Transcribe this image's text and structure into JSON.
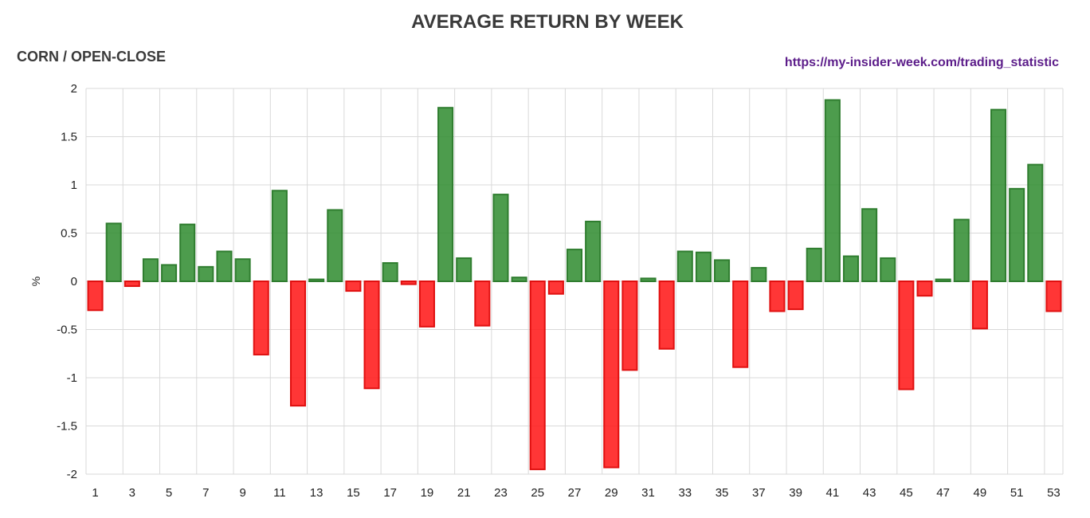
{
  "title": "AVERAGE RETURN BY WEEK",
  "subtitle": "CORN / OPEN-CLOSE",
  "source_url": "https://my-insider-week.com/trading_statistic",
  "colors": {
    "positive_fill": "#2e8b2e",
    "positive_stroke": "#2f7d2f",
    "negative_fill": "#ff1a1a",
    "negative_stroke": "#e01010",
    "grid": "#d9d9d9",
    "title_text": "#3a3a3a",
    "link_text": "#5c1d8a"
  },
  "chart_data": {
    "type": "bar",
    "title": "AVERAGE RETURN BY WEEK",
    "subtitle": "CORN / OPEN-CLOSE",
    "xlabel": "",
    "ylabel": "%",
    "ylim": [
      -2,
      2
    ],
    "yticks": [
      2,
      1.5,
      1,
      0.5,
      0,
      -0.5,
      -1,
      -1.5,
      -2
    ],
    "ytick_labels": [
      "2",
      "1.5",
      "1",
      "0.5",
      "0",
      "-0.5",
      "-1",
      "-1.5",
      "-2"
    ],
    "xtick_labels": [
      "1",
      "3",
      "5",
      "7",
      "9",
      "11",
      "13",
      "15",
      "17",
      "19",
      "21",
      "23",
      "25",
      "27",
      "29",
      "31",
      "33",
      "35",
      "37",
      "39",
      "41",
      "43",
      "45",
      "47",
      "49",
      "51",
      "53"
    ],
    "grid": true,
    "legend": "none",
    "categories": [
      1,
      2,
      3,
      4,
      5,
      6,
      7,
      8,
      9,
      10,
      11,
      12,
      13,
      14,
      15,
      16,
      17,
      18,
      19,
      20,
      21,
      22,
      23,
      24,
      25,
      26,
      27,
      28,
      29,
      30,
      31,
      32,
      33,
      34,
      35,
      36,
      37,
      38,
      39,
      40,
      41,
      42,
      43,
      44,
      45,
      46,
      47,
      48,
      49,
      50,
      51,
      52,
      53
    ],
    "values": [
      -0.3,
      0.6,
      -0.05,
      0.23,
      0.17,
      0.59,
      0.15,
      0.31,
      0.23,
      -0.76,
      0.94,
      -1.29,
      0.02,
      0.74,
      -0.1,
      -1.11,
      0.19,
      -0.03,
      -0.47,
      1.8,
      0.24,
      -0.46,
      0.9,
      0.04,
      -1.95,
      -0.13,
      0.33,
      0.62,
      -1.93,
      -0.92,
      0.03,
      -0.7,
      0.31,
      0.3,
      0.22,
      -0.89,
      0.14,
      -0.31,
      -0.29,
      0.34,
      1.88,
      0.26,
      0.75,
      0.24,
      -1.12,
      -0.15,
      0.02,
      0.64,
      -0.49,
      1.78,
      0.96,
      1.21,
      -0.31
    ]
  }
}
